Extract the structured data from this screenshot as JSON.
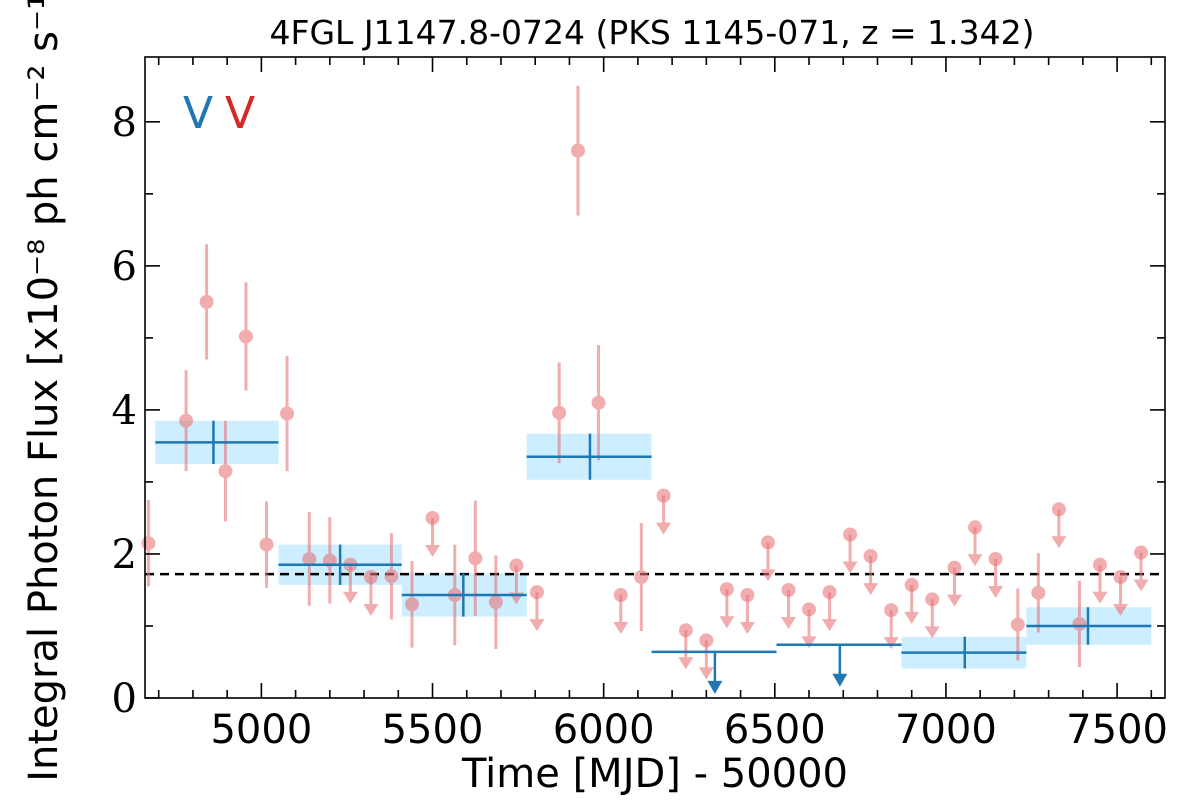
{
  "chart_data": {
    "type": "scatter",
    "title": "4FGL J1147.8-0724 (PKS 1145-071, z = 1.342)",
    "xlabel": "Time [MJD] - 50000",
    "ylabel": "Integral Photon Flux [x10⁻⁸ ph cm⁻² s⁻¹]",
    "xlim": [
      4660,
      7640
    ],
    "ylim": [
      0,
      8.9
    ],
    "x_ticks": [
      5000,
      5500,
      6000,
      6500,
      7000,
      7500
    ],
    "y_ticks": [
      0,
      2,
      4,
      6,
      8
    ],
    "x_tick_labels": [
      "5000",
      "5500",
      "6000",
      "6500",
      "7000",
      "7500"
    ],
    "y_tick_labels": [
      "0",
      "2",
      "4",
      "6",
      "8"
    ],
    "average_flux": 1.72,
    "markers": [
      {
        "label": "V",
        "color": "#1f77b4"
      },
      {
        "label": "V",
        "color": "#d62728"
      }
    ],
    "colors": {
      "monthly": "#e8767a",
      "yearly": "#1f77b4",
      "yearly_band": "#cceeff",
      "average_line": "#000000"
    },
    "monthly_detections": [
      {
        "x": 4670,
        "y": 2.15,
        "err": 0.6
      },
      {
        "x": 4780,
        "y": 3.85,
        "err": 0.7
      },
      {
        "x": 4840,
        "y": 5.5,
        "err": 0.8
      },
      {
        "x": 4895,
        "y": 3.15,
        "err": 0.7
      },
      {
        "x": 4955,
        "y": 5.02,
        "err": 0.75
      },
      {
        "x": 5015,
        "y": 2.13,
        "err": 0.6
      },
      {
        "x": 5075,
        "y": 3.95,
        "err": 0.8
      },
      {
        "x": 5140,
        "y": 1.93,
        "err": 0.65
      },
      {
        "x": 5200,
        "y": 1.91,
        "err": 0.6
      },
      {
        "x": 5380,
        "y": 1.69,
        "err": 0.6
      },
      {
        "x": 5440,
        "y": 1.3,
        "err": 0.6
      },
      {
        "x": 5565,
        "y": 1.43,
        "err": 0.7
      },
      {
        "x": 5625,
        "y": 1.94,
        "err": 0.8
      },
      {
        "x": 5685,
        "y": 1.33,
        "err": 0.65
      },
      {
        "x": 5870,
        "y": 3.96,
        "err": 0.7
      },
      {
        "x": 5925,
        "y": 7.6,
        "err": 0.9
      },
      {
        "x": 5985,
        "y": 4.1,
        "err": 0.8
      },
      {
        "x": 6110,
        "y": 1.68,
        "err": 0.75
      },
      {
        "x": 7210,
        "y": 1.02,
        "err": 0.5
      },
      {
        "x": 7270,
        "y": 1.46,
        "err": 0.55
      },
      {
        "x": 7390,
        "y": 1.03,
        "err": 0.6
      }
    ],
    "monthly_upper_limits": [
      {
        "x": 5260,
        "y": 1.85
      },
      {
        "x": 5320,
        "y": 1.68
      },
      {
        "x": 5500,
        "y": 2.5
      },
      {
        "x": 5745,
        "y": 1.84
      },
      {
        "x": 5805,
        "y": 1.47
      },
      {
        "x": 6050,
        "y": 1.43
      },
      {
        "x": 6175,
        "y": 2.81
      },
      {
        "x": 6240,
        "y": 0.94
      },
      {
        "x": 6300,
        "y": 0.8
      },
      {
        "x": 6360,
        "y": 1.51
      },
      {
        "x": 6420,
        "y": 1.43
      },
      {
        "x": 6480,
        "y": 2.16
      },
      {
        "x": 6540,
        "y": 1.5
      },
      {
        "x": 6600,
        "y": 1.23
      },
      {
        "x": 6660,
        "y": 1.47
      },
      {
        "x": 6720,
        "y": 2.27
      },
      {
        "x": 6780,
        "y": 1.97
      },
      {
        "x": 6840,
        "y": 1.22
      },
      {
        "x": 6900,
        "y": 1.57
      },
      {
        "x": 6960,
        "y": 1.37
      },
      {
        "x": 7025,
        "y": 1.81
      },
      {
        "x": 7085,
        "y": 2.37
      },
      {
        "x": 7145,
        "y": 1.93
      },
      {
        "x": 7330,
        "y": 2.62
      },
      {
        "x": 7450,
        "y": 1.85
      },
      {
        "x": 7510,
        "y": 1.68
      },
      {
        "x": 7570,
        "y": 2.02
      }
    ],
    "yearly_detections": [
      {
        "x": 4860,
        "x_start": 4690,
        "x_end": 5050,
        "y": 3.55,
        "err": 0.3
      },
      {
        "x": 5230,
        "x_start": 5050,
        "x_end": 5410,
        "y": 1.85,
        "err": 0.28
      },
      {
        "x": 5590,
        "x_start": 5410,
        "x_end": 5775,
        "y": 1.43,
        "err": 0.3
      },
      {
        "x": 5960,
        "x_start": 5775,
        "x_end": 6140,
        "y": 3.35,
        "err": 0.32
      },
      {
        "x": 7055,
        "x_start": 6870,
        "x_end": 7235,
        "y": 0.63,
        "err": 0.22
      },
      {
        "x": 7415,
        "x_start": 7235,
        "x_end": 7600,
        "y": 1.0,
        "err": 0.26
      }
    ],
    "yearly_upper_limits": [
      {
        "x": 6325,
        "x_start": 6140,
        "x_end": 6505,
        "y": 0.64
      },
      {
        "x": 6690,
        "x_start": 6505,
        "x_end": 6870,
        "y": 0.74
      }
    ]
  }
}
